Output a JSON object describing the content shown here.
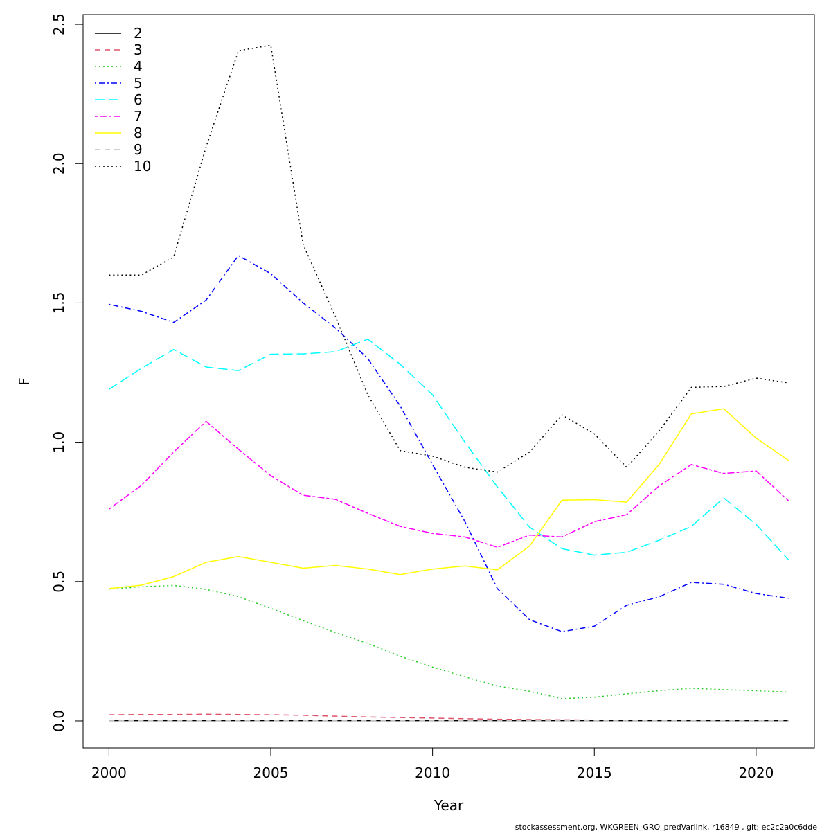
{
  "chart_data": {
    "type": "line",
    "xlabel": "Year",
    "ylabel": "F",
    "xlim": [
      1999.2,
      2021.8
    ],
    "ylim": [
      -0.097,
      2.535
    ],
    "xticks": [
      "2000",
      "2005",
      "2010",
      "2015",
      "2020"
    ],
    "yticks": [
      "0.0",
      "0.5",
      "1.0",
      "1.5",
      "2.0",
      "2.5"
    ],
    "grid": false,
    "legend_position": "top-left",
    "x": [
      2000,
      2001,
      2002,
      2003,
      2004,
      2005,
      2006,
      2007,
      2008,
      2009,
      2010,
      2011,
      2012,
      2013,
      2014,
      2015,
      2016,
      2017,
      2018,
      2019,
      2020,
      2021
    ],
    "series": [
      {
        "name": "2",
        "color": "#000000",
        "dash": "solid",
        "values": [
          0.001,
          0.001,
          0.001,
          0.001,
          0.001,
          0.001,
          0.001,
          0.001,
          0.001,
          0.001,
          0.001,
          0.001,
          0.001,
          0.001,
          0.001,
          0.001,
          0.001,
          0.001,
          0.001,
          0.001,
          0.001,
          0.001
        ]
      },
      {
        "name": "3",
        "color": "#DF536B",
        "dash": "dashed",
        "values": [
          0.022,
          0.023,
          0.023,
          0.024,
          0.023,
          0.022,
          0.02,
          0.017,
          0.014,
          0.012,
          0.01,
          0.008,
          0.006,
          0.005,
          0.004,
          0.003,
          0.003,
          0.003,
          0.003,
          0.003,
          0.003,
          0.003
        ]
      },
      {
        "name": "4",
        "color": "#22CC22",
        "dash": "dotted",
        "values": [
          0.473,
          0.481,
          0.486,
          0.472,
          0.446,
          0.404,
          0.36,
          0.317,
          0.278,
          0.232,
          0.193,
          0.158,
          0.125,
          0.106,
          0.08,
          0.085,
          0.097,
          0.108,
          0.117,
          0.112,
          0.108,
          0.103
        ]
      },
      {
        "name": "5",
        "color": "#0000FF",
        "dash": "dotdash",
        "values": [
          1.495,
          1.47,
          1.43,
          1.51,
          1.67,
          1.605,
          1.5,
          1.41,
          1.3,
          1.13,
          0.92,
          0.715,
          0.475,
          0.363,
          0.32,
          0.34,
          0.415,
          0.445,
          0.497,
          0.49,
          0.457,
          0.44
        ]
      },
      {
        "name": "6",
        "color": "#00FFFF",
        "dash": "longdash",
        "values": [
          1.19,
          1.265,
          1.333,
          1.27,
          1.257,
          1.316,
          1.317,
          1.325,
          1.37,
          1.28,
          1.17,
          1.0,
          0.84,
          0.695,
          0.618,
          0.595,
          0.605,
          0.648,
          0.698,
          0.8,
          0.705,
          0.578
        ]
      },
      {
        "name": "7",
        "color": "#FF00FF",
        "dash": "twodash",
        "values": [
          0.76,
          0.845,
          0.965,
          1.075,
          0.975,
          0.88,
          0.81,
          0.795,
          0.745,
          0.698,
          0.673,
          0.66,
          0.623,
          0.667,
          0.66,
          0.715,
          0.74,
          0.843,
          0.92,
          0.888,
          0.897,
          0.79
        ]
      },
      {
        "name": "8",
        "color": "#FFFF00",
        "dash": "solid",
        "values": [
          0.475,
          0.487,
          0.518,
          0.569,
          0.59,
          0.569,
          0.548,
          0.558,
          0.545,
          0.525,
          0.545,
          0.556,
          0.542,
          0.628,
          0.792,
          0.794,
          0.785,
          0.92,
          1.102,
          1.12,
          1.015,
          0.935
        ]
      },
      {
        "name": "9",
        "color": "#BEBEBE",
        "dash": "dashed",
        "values": [
          0.001,
          0.001,
          0.001,
          0.001,
          0.001,
          0.001,
          0.001,
          0.001,
          0.001,
          0.001,
          0.001,
          0.001,
          0.001,
          0.001,
          0.001,
          0.001,
          0.001,
          0.001,
          0.001,
          0.001,
          0.001,
          0.001
        ]
      },
      {
        "name": "10",
        "color": "#000000",
        "dash": "dotted",
        "values": [
          1.6,
          1.6,
          1.665,
          2.06,
          2.405,
          2.425,
          1.71,
          1.45,
          1.17,
          0.97,
          0.95,
          0.91,
          0.893,
          0.965,
          1.098,
          1.03,
          0.91,
          1.04,
          1.197,
          1.2,
          1.23,
          1.213
        ]
      }
    ]
  },
  "footer": "stockassessment.org, WKGREEN_GRO_predVarlink, r16849 , git: ec2c2a0c6dde"
}
